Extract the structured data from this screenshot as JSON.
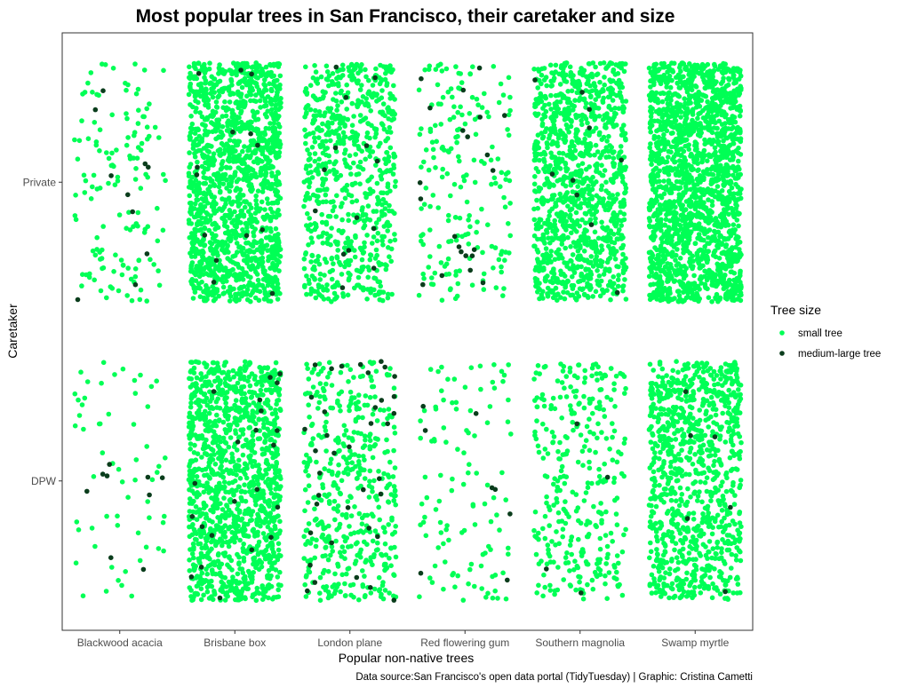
{
  "chart_data": {
    "type": "scatter",
    "subtype": "jitter strip plot",
    "title": "Most popular trees in San Francisco, their caretaker and size",
    "xlabel": "Popular non-native trees",
    "ylabel": "Caretaker",
    "caption": "Data source:San Francisco's open data portal (TidyTuesday) | Graphic: Cristina Cametti",
    "x_categories": [
      "Blackwood acacia",
      "Brisbane box",
      "London plane",
      "Red flowering gum",
      "Southern magnolia",
      "Swamp myrtle"
    ],
    "y_categories": [
      "DPW",
      "Private"
    ],
    "grid": false,
    "legend": {
      "title": "Tree size",
      "position": "right",
      "entries": [
        {
          "label": "small tree",
          "color": "#00FF55"
        },
        {
          "label": "medium-large tree",
          "color": "#0A3D1C"
        }
      ]
    },
    "approx_point_counts": [
      {
        "species": "Blackwood acacia",
        "caretaker": "Private",
        "small": 140,
        "medium_large": 10
      },
      {
        "species": "Blackwood acacia",
        "caretaker": "DPW",
        "small": 60,
        "medium_large": 9
      },
      {
        "species": "Brisbane box",
        "caretaker": "Private",
        "small": 1450,
        "medium_large": 14
      },
      {
        "species": "Brisbane box",
        "caretaker": "DPW",
        "small": 1250,
        "medium_large": 22
      },
      {
        "species": "London plane",
        "caretaker": "Private",
        "small": 700,
        "medium_large": 14
      },
      {
        "species": "London plane",
        "caretaker": "DPW",
        "small": 460,
        "medium_large": 38
      },
      {
        "species": "Red flowering gum",
        "caretaker": "Private",
        "small": 190,
        "medium_large": 22
      },
      {
        "species": "Red flowering gum",
        "caretaker": "DPW",
        "small": 110,
        "medium_large": 8
      },
      {
        "species": "Southern magnolia",
        "caretaker": "Private",
        "small": 1100,
        "medium_large": 10
      },
      {
        "species": "Southern magnolia",
        "caretaker": "DPW",
        "small": 330,
        "medium_large": 4
      },
      {
        "species": "Swamp myrtle",
        "caretaker": "Private",
        "small": 1800,
        "medium_large": 0
      },
      {
        "species": "Swamp myrtle",
        "caretaker": "DPW",
        "small": 950,
        "medium_large": 6
      }
    ]
  }
}
